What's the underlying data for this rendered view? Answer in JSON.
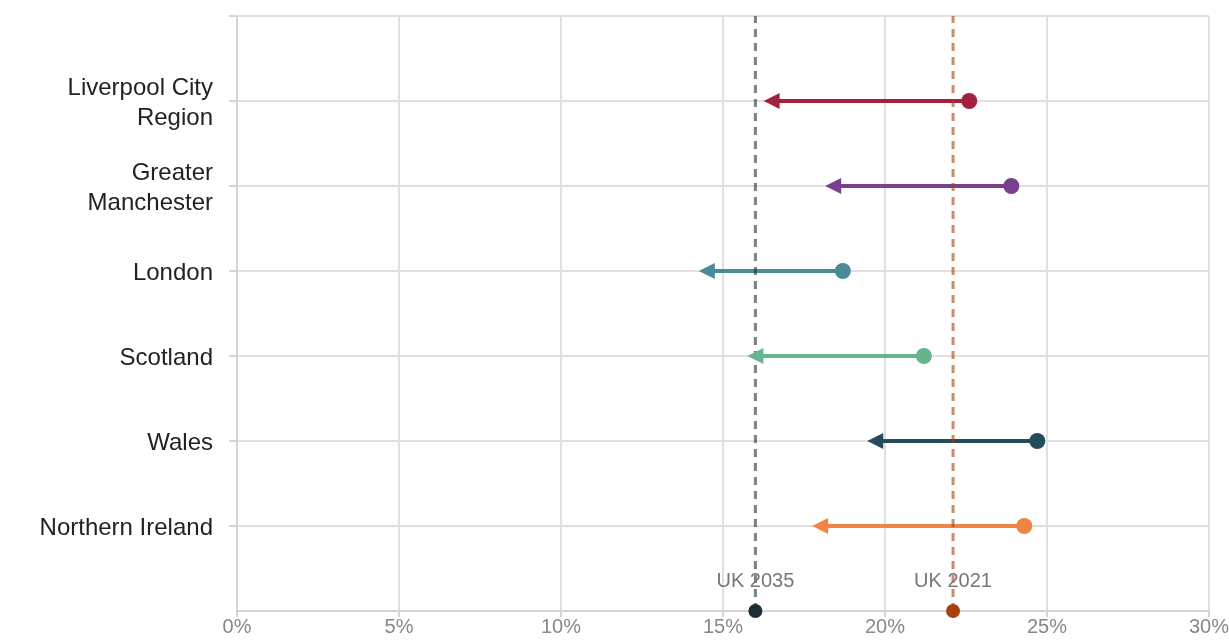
{
  "chart_data": {
    "type": "scatter",
    "orientation": "horizontal",
    "categories": [
      "Liverpool City Region",
      "Greater Manchester",
      "London",
      "Scotland",
      "Wales",
      "Northern Ireland"
    ],
    "series": [
      {
        "marker": "triangle",
        "values": [
          16.5,
          18.4,
          14.5,
          16.0,
          19.7,
          18.0
        ],
        "colors": [
          "#a3203f",
          "#7b3f8f",
          "#4a8a99",
          "#66b58f",
          "#264b5b",
          "#ef8443"
        ]
      },
      {
        "marker": "circle",
        "values": [
          22.6,
          23.9,
          18.7,
          21.2,
          24.7,
          24.3
        ],
        "colors": [
          "#a3203f",
          "#7b3f8f",
          "#4a8a99",
          "#66b58f",
          "#264b5b",
          "#ef8443"
        ]
      }
    ],
    "xlim": [
      0,
      30
    ],
    "xticks": [
      {
        "value": 0,
        "label": "0%"
      },
      {
        "value": 5,
        "label": "5%"
      },
      {
        "value": 10,
        "label": "10%"
      },
      {
        "value": 15,
        "label": "15%"
      },
      {
        "value": 20,
        "label": "20%"
      },
      {
        "value": 25,
        "label": "25%"
      },
      {
        "value": 30,
        "label": "30%"
      }
    ],
    "grid": true,
    "ref_lines": [
      {
        "axis": "x",
        "value": 16.0,
        "label": "UK 2035",
        "color": "#1a2e35",
        "line_style": "dashed"
      },
      {
        "axis": "x",
        "value": 22.1,
        "label": "UK 2021",
        "color": "#a3410f",
        "line_style": "dashed"
      }
    ]
  }
}
